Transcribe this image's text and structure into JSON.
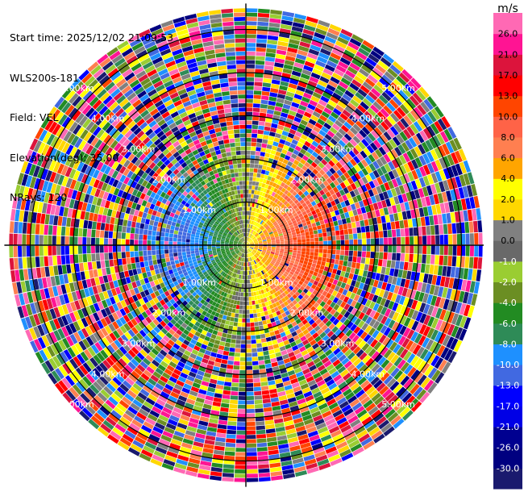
{
  "header": {
    "start_time": "Start time: 2025/12/02 21:09:53",
    "instrument": "WLS200s-181",
    "field": "Field: VEL",
    "elevation": "Elevation(deg): 35.00",
    "nrays": "NRays: 120"
  },
  "chart_data": {
    "type": "ppi-scan",
    "field": "VEL",
    "units": "m/s",
    "elevation_deg": 35.0,
    "n_rays": 120,
    "range_rings_km": [
      1.0,
      2.0,
      3.0,
      4.0,
      5.0
    ],
    "ring_labels": [
      "1.00km",
      "2.00km",
      "3.00km",
      "4.00km",
      "5.00km"
    ],
    "max_range_km": 5.6,
    "colorbar": {
      "title": "m/s",
      "levels": [
        "-30.0",
        "-26.0",
        "-21.0",
        "-17.0",
        "-13.0",
        "-10.0",
        "-8.0",
        "-6.0",
        "-4.0",
        "-2.0",
        "-1.0",
        "0.0",
        "1.0",
        "2.0",
        "4.0",
        "6.0",
        "8.0",
        "10.0",
        "13.0",
        "17.0",
        "21.0",
        "26.0"
      ],
      "colors": [
        "#1a1a6e",
        "#000080",
        "#000090",
        "#0000e6",
        "#0000ff",
        "#4169e1",
        "#1e90ff",
        "#2e8b57",
        "#228b22",
        "#6b8e23",
        "#9acd32",
        "#696969",
        "#808080",
        "#ffd700",
        "#ffff00",
        "#ffa500",
        "#ff7f50",
        "#ff6347",
        "#ff4500",
        "#ff0000",
        "#dc143c",
        "#ff1493",
        "#ff69b4"
      ]
    }
  }
}
